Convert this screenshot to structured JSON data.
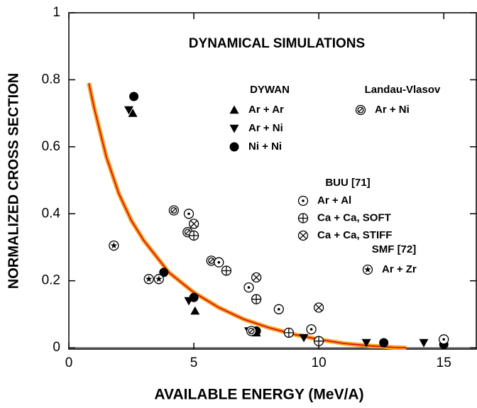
{
  "chart_data": {
    "type": "scatter",
    "title": "DYNAMICAL SIMULATIONS",
    "x_label": "AVAILABLE ENERGY (MeV/A)",
    "y_label": "NORMALIZED CROSS SECTION",
    "xlim": [
      0,
      16.3
    ],
    "ylim": [
      -0.004,
      1
    ],
    "xticks": [
      0,
      5,
      10,
      15
    ],
    "yticks": [
      0,
      0.2,
      0.4,
      0.6,
      0.8,
      1
    ],
    "fit": {
      "color": "#f5a623",
      "line_color": "#e0101a",
      "x": [
        0.8,
        1,
        1.5,
        2,
        2.5,
        3,
        4,
        5,
        6,
        7,
        8,
        9,
        10,
        11,
        12,
        13,
        13.5
      ],
      "values": [
        0.79,
        0.72,
        0.57,
        0.46,
        0.38,
        0.32,
        0.225,
        0.165,
        0.12,
        0.085,
        0.06,
        0.04,
        0.025,
        0.013,
        0.006,
        0.001,
        0
      ]
    },
    "groups": [
      {
        "title": "DYWAN",
        "series": [
          {
            "name": "Ar + Ar",
            "marker": "triangle-up",
            "color": "#000000",
            "x": [
              2.56,
              5.05,
              7.5
            ],
            "values": [
              0.7,
              0.11,
              0.045
            ]
          },
          {
            "name": "Ar + Ni",
            "marker": "triangle-down",
            "color": "#000000",
            "x": [
              2.4,
              4.8,
              7.2,
              9.4,
              11.9,
              14.2
            ],
            "values": [
              0.71,
              0.14,
              0.05,
              0.03,
              0.015,
              0.015
            ]
          },
          {
            "name": "Ni + Ni",
            "marker": "circle",
            "color": "#000000",
            "x": [
              2.6,
              3.8,
              5.0,
              7.5,
              10.0,
              12.6,
              15.0
            ],
            "values": [
              0.75,
              0.225,
              0.15,
              0.05,
              0.02,
              0.015,
              0.01
            ]
          }
        ]
      },
      {
        "title": "Landau-Vlasov",
        "series": [
          {
            "name": "Ar + Ni",
            "marker": "hatched-circle",
            "color": "#000000",
            "x": [
              4.2,
              4.75,
              5.7,
              7.3
            ],
            "values": [
              0.41,
              0.345,
              0.26,
              0.05
            ]
          }
        ]
      },
      {
        "title": "BUU [71]",
        "series": [
          {
            "name": "Ar + Al",
            "marker": "dot-circle",
            "color": "#000000",
            "x": [
              4.8,
              6.0,
              7.2,
              8.4,
              9.7,
              15.0
            ],
            "values": [
              0.4,
              0.255,
              0.18,
              0.115,
              0.055,
              0.025
            ]
          },
          {
            "name": "Ca + Ca, SOFT",
            "marker": "plus-circle",
            "color": "#000000",
            "x": [
              5.0,
              6.3,
              7.5,
              8.8,
              10.0
            ],
            "values": [
              0.335,
              0.23,
              0.145,
              0.045,
              0.02
            ]
          },
          {
            "name": "Ca + Ca, STIFF",
            "marker": "cross-circle",
            "color": "#000000",
            "x": [
              5.0,
              7.5,
              10.0
            ],
            "values": [
              0.37,
              0.21,
              0.12
            ]
          }
        ]
      },
      {
        "title": "SMF [72]",
        "series": [
          {
            "name": "Ar + Zr",
            "marker": "star-circle",
            "color": "#000000",
            "x": [
              1.8,
              3.2,
              3.6
            ],
            "values": [
              0.305,
              0.205,
              0.205
            ]
          }
        ]
      }
    ]
  }
}
